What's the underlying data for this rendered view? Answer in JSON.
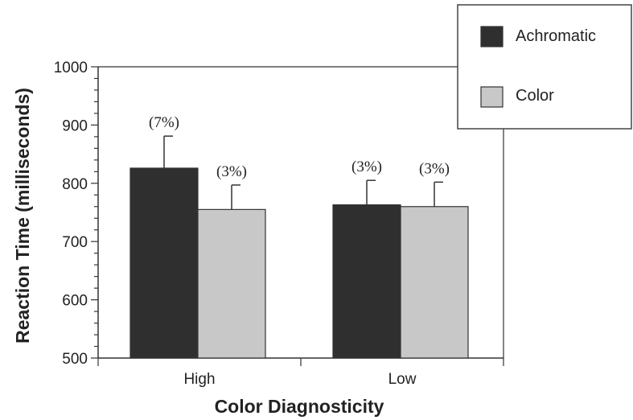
{
  "chart_data": {
    "type": "bar",
    "title": "",
    "xlabel": "Color Diagnosticity",
    "ylabel": "Reaction Time (milliseconds)",
    "ylim": [
      500,
      1000
    ],
    "yticks": [
      500,
      600,
      700,
      800,
      900,
      1000
    ],
    "categories": [
      "High",
      "Low"
    ],
    "series": [
      {
        "name": "Achromatic",
        "values": [
          826,
          763
        ],
        "error": [
          55,
          42
        ],
        "labels": [
          "(7%)",
          "(3%)"
        ],
        "color": "#2f2f2f"
      },
      {
        "name": "Color",
        "values": [
          755,
          760
        ],
        "error": [
          42,
          42
        ],
        "labels": [
          "(3%)",
          "(3%)"
        ],
        "color": "#c8c8c8"
      }
    ],
    "legend_position": "top-right",
    "grid": false
  }
}
